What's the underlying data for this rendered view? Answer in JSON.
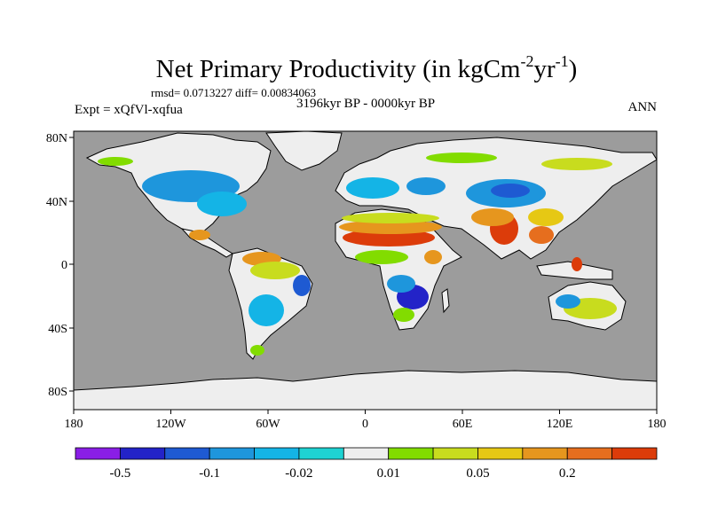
{
  "title": {
    "main": "Net Primary Productivity (in kgCm",
    "sup1": "-2",
    "mid": "yr",
    "sup2": "-1",
    "close": ")"
  },
  "stats": "rmsd= 0.0713227 diff= 0.00834063",
  "left_label": "Expt = xQfVl-xqfua",
  "center_label": "3196kyr BP - 0000kyr BP",
  "right_label": "ANN",
  "map": {
    "y_ticks": [
      "80N",
      "40N",
      "0",
      "40S",
      "80S"
    ],
    "x_ticks": [
      "180",
      "120W",
      "60W",
      "0",
      "60E",
      "120E",
      "180"
    ],
    "ocean_color": "#9c9c9c",
    "neutral_land_color": "#eeeeee"
  },
  "colorbar": {
    "colors": [
      "#8a1ee6",
      "#2323c8",
      "#1e5ad2",
      "#1e96dc",
      "#14b4e6",
      "#1ed2d2",
      "#eeeeee",
      "#82dc00",
      "#c8dc1e",
      "#e6c814",
      "#e6961e",
      "#e66e1e",
      "#dc3c0a"
    ],
    "labels": [
      "-0.5",
      "-0.1",
      "-0.02",
      "0.01",
      "0.05",
      "0.2"
    ]
  }
}
